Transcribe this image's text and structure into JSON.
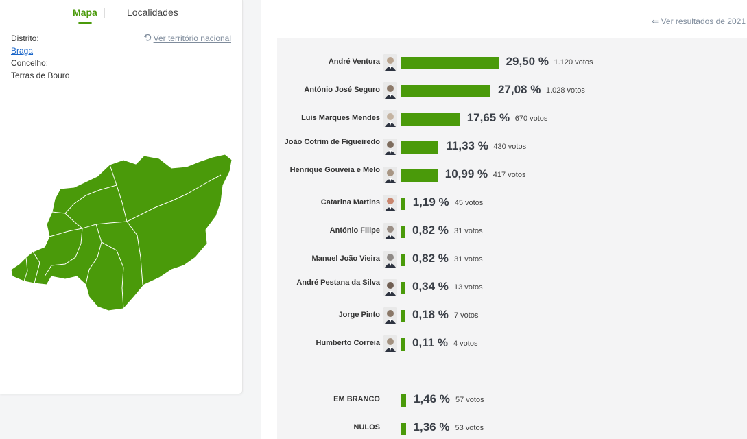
{
  "tabs": {
    "map": "Mapa",
    "localities": "Localidades"
  },
  "location": {
    "district_label": "Distrito:",
    "district_value": "Braga",
    "municipality_label": "Concelho:",
    "municipality_value": "Terras de Bouro",
    "national_link": "Ver território nacional"
  },
  "results_link": "Ver resultados de 2021",
  "colors": {
    "accent": "#4a9a0a",
    "link": "#1a66c9"
  },
  "candidates": [
    {
      "name": "André Ventura",
      "pct": 29.5,
      "pct_label": "29,50 %",
      "votes": "1.120 votos"
    },
    {
      "name": "António José Seguro",
      "pct": 27.08,
      "pct_label": "27,08 %",
      "votes": "1.028 votos"
    },
    {
      "name": "Luís Marques Mendes",
      "pct": 17.65,
      "pct_label": "17,65 %",
      "votes": "670 votos"
    },
    {
      "name": "João Cotrim de Figueiredo",
      "pct": 11.33,
      "pct_label": "11,33 %",
      "votes": "430 votos"
    },
    {
      "name": "Henrique Gouveia e Melo",
      "pct": 10.99,
      "pct_label": "10,99 %",
      "votes": "417 votos"
    },
    {
      "name": "Catarina Martins",
      "pct": 1.19,
      "pct_label": "1,19 %",
      "votes": "45 votos"
    },
    {
      "name": "António Filipe",
      "pct": 0.82,
      "pct_label": "0,82 %",
      "votes": "31 votos"
    },
    {
      "name": "Manuel João Vieira",
      "pct": 0.82,
      "pct_label": "0,82 %",
      "votes": "31 votos"
    },
    {
      "name": "André Pestana da Silva",
      "pct": 0.34,
      "pct_label": "0,34 %",
      "votes": "13 votos"
    },
    {
      "name": "Jorge Pinto",
      "pct": 0.18,
      "pct_label": "0,18 %",
      "votes": "7 votos"
    },
    {
      "name": "Humberto Correia",
      "pct": 0.11,
      "pct_label": "0,11 %",
      "votes": "4 votos"
    }
  ],
  "others": [
    {
      "name": "EM BRANCO",
      "pct": 1.46,
      "pct_label": "1,46 %",
      "votes": "57 votos"
    },
    {
      "name": "NULOS",
      "pct": 1.36,
      "pct_label": "1,36 %",
      "votes": "53 votos"
    }
  ]
}
